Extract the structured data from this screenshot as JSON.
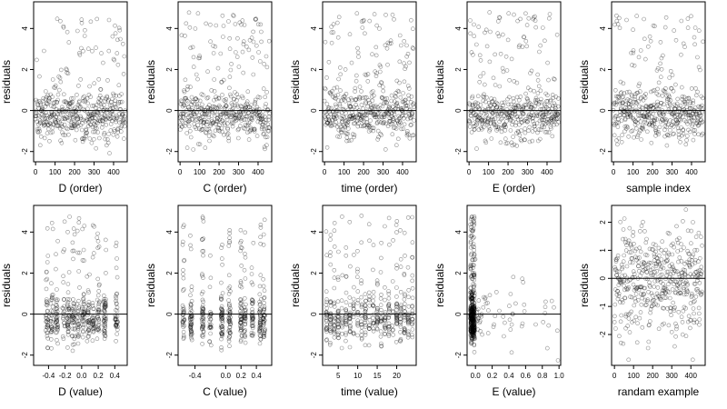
{
  "chart_data": [
    {
      "type": "scatter",
      "xlabel": "D (order)",
      "ylabel": "residuals",
      "xlim": [
        -10,
        470
      ],
      "ylim": [
        -2.5,
        5.3
      ],
      "xticks": [
        0,
        100,
        200,
        300,
        400
      ],
      "xtick_labels": [
        "0",
        "100",
        "200",
        "300",
        "400"
      ],
      "yticks": [
        -2,
        0,
        2,
        4
      ],
      "ytick_labels": [
        "-2",
        "0",
        "2",
        "4"
      ],
      "hline": 0,
      "pattern": "order"
    },
    {
      "type": "scatter",
      "xlabel": "C (order)",
      "ylabel": "residuals",
      "xlim": [
        -10,
        470
      ],
      "ylim": [
        -2.5,
        5.3
      ],
      "xticks": [
        0,
        100,
        200,
        300,
        400
      ],
      "xtick_labels": [
        "0",
        "100",
        "200",
        "300",
        "400"
      ],
      "yticks": [
        -2,
        0,
        2,
        4
      ],
      "ytick_labels": [
        "-2",
        "0",
        "2",
        "4"
      ],
      "hline": 0,
      "pattern": "order"
    },
    {
      "type": "scatter",
      "xlabel": "time (order)",
      "ylabel": "residuals",
      "xlim": [
        -10,
        470
      ],
      "ylim": [
        -2.5,
        5.3
      ],
      "xticks": [
        0,
        100,
        200,
        300,
        400
      ],
      "xtick_labels": [
        "0",
        "100",
        "200",
        "300",
        "400"
      ],
      "yticks": [
        -2,
        0,
        2,
        4
      ],
      "ytick_labels": [
        "-2",
        "0",
        "2",
        "4"
      ],
      "hline": 0,
      "pattern": "order"
    },
    {
      "type": "scatter",
      "xlabel": "E (order)",
      "ylabel": "residuals",
      "xlim": [
        -10,
        470
      ],
      "ylim": [
        -2.5,
        5.3
      ],
      "xticks": [
        0,
        100,
        200,
        300,
        400
      ],
      "xtick_labels": [
        "0",
        "100",
        "200",
        "300",
        "400"
      ],
      "yticks": [
        -2,
        0,
        2,
        4
      ],
      "ytick_labels": [
        "-2",
        "0",
        "2",
        "4"
      ],
      "hline": 0,
      "pattern": "order"
    },
    {
      "type": "scatter",
      "xlabel": "sample index",
      "ylabel": "residuals",
      "xlim": [
        -10,
        470
      ],
      "ylim": [
        -2.5,
        5.3
      ],
      "xticks": [
        0,
        100,
        200,
        300,
        400
      ],
      "xtick_labels": [
        "0",
        "100",
        "200",
        "300",
        "400"
      ],
      "yticks": [
        -2,
        0,
        2,
        4
      ],
      "ytick_labels": [
        "-2",
        "0",
        "2",
        "4"
      ],
      "hline": 0,
      "pattern": "order"
    },
    {
      "type": "scatter",
      "xlabel": "D (value)",
      "ylabel": "residuals",
      "xlim": [
        -0.58,
        0.55
      ],
      "ylim": [
        -2.5,
        5.3
      ],
      "xticks": [
        -0.4,
        -0.2,
        0.0,
        0.2,
        0.4
      ],
      "xtick_labels": [
        "-0.4",
        "-0.2",
        "0.0",
        "0.2",
        "0.4"
      ],
      "yticks": [
        -2,
        0,
        2,
        4
      ],
      "ytick_labels": [
        "-2",
        "0",
        "2",
        "4"
      ],
      "hline": 0,
      "pattern": "columns",
      "columns": [
        -0.42,
        -0.36,
        -0.3,
        -0.22,
        -0.16,
        -0.1,
        -0.04,
        0.02,
        0.08,
        0.14,
        0.2,
        0.28,
        0.42
      ],
      "column_spread": 0.015
    },
    {
      "type": "scatter",
      "xlabel": "C (value)",
      "ylabel": "residuals",
      "xlim": [
        -0.62,
        0.6
      ],
      "ylim": [
        -2.5,
        5.3
      ],
      "xticks": [
        -0.4,
        0.0,
        0.2,
        0.4
      ],
      "xtick_labels": [
        "-0.4",
        "0.0",
        "0.2",
        "0.4"
      ],
      "yticks": [
        -2,
        0,
        2,
        4
      ],
      "ytick_labels": [
        "-2",
        "0",
        "2",
        "4"
      ],
      "hline": 0,
      "pattern": "columns",
      "columns": [
        -0.55,
        -0.45,
        -0.3,
        -0.2,
        -0.05,
        0.05,
        0.2,
        0.25,
        0.35,
        0.45,
        0.5
      ],
      "column_spread": 0.012
    },
    {
      "type": "scatter",
      "xlabel": "time (value)",
      "ylabel": "residuals",
      "xlim": [
        1,
        25
      ],
      "ylim": [
        -2.5,
        5.3
      ],
      "xticks": [
        5,
        10,
        15,
        20
      ],
      "xtick_labels": [
        "5",
        "10",
        "15",
        "20"
      ],
      "yticks": [
        -2,
        0,
        2,
        4
      ],
      "ytick_labels": [
        "-2",
        "0",
        "2",
        "4"
      ],
      "hline": 0,
      "pattern": "columns",
      "columns": [
        2,
        3,
        4,
        5,
        6,
        7,
        8,
        9,
        10,
        11,
        12,
        13,
        14,
        15,
        16,
        17,
        18,
        19,
        20,
        21,
        22,
        23,
        24
      ],
      "column_spread": 0.1
    },
    {
      "type": "scatter",
      "xlabel": "E (value)",
      "ylabel": "residuals",
      "xlim": [
        -0.1,
        1.02
      ],
      "ylim": [
        -2.5,
        5.3
      ],
      "xticks": [
        0.0,
        0.2,
        0.4,
        0.6,
        0.8,
        1.0
      ],
      "xtick_labels": [
        "0.0",
        "0.2",
        "0.4",
        "0.6",
        "0.8",
        "1.0"
      ],
      "yticks": [
        -2,
        0,
        2,
        4
      ],
      "ytick_labels": [
        "-2",
        "0",
        "2",
        "4"
      ],
      "hline": 0,
      "pattern": "skewed"
    },
    {
      "type": "scatter",
      "xlabel": "randam example",
      "ylabel": "residuals",
      "xlim": [
        -15,
        475
      ],
      "ylim": [
        -3.1,
        2.6
      ],
      "xticks": [
        0,
        100,
        200,
        300,
        400
      ],
      "xtick_labels": [
        "0",
        "100",
        "200",
        "300",
        "400"
      ],
      "yticks": [
        -2,
        -1,
        0,
        1,
        2
      ],
      "ytick_labels": [
        "-2",
        "-1",
        "0",
        "1",
        "2"
      ],
      "hline": 0,
      "pattern": "uniform"
    }
  ]
}
